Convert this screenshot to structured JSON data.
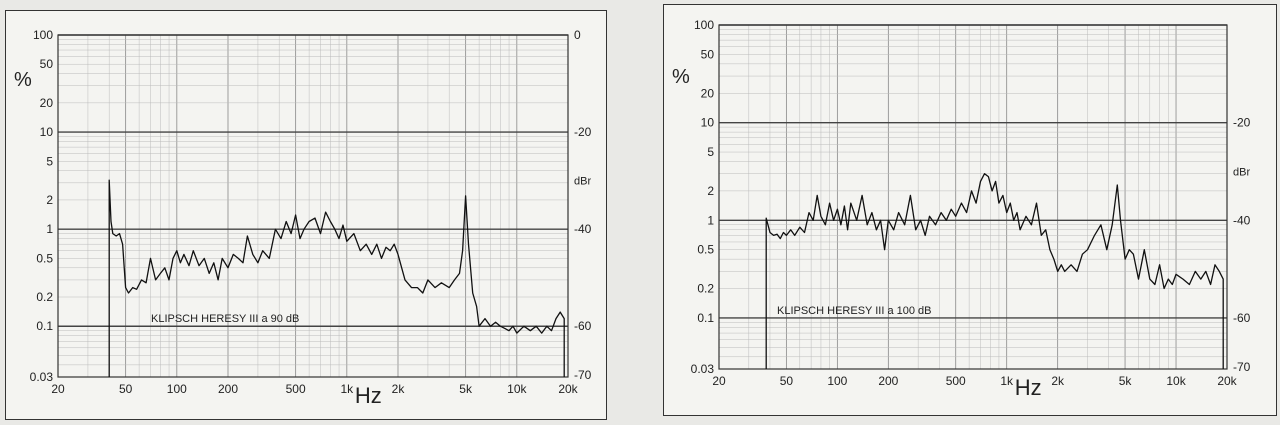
{
  "chart_data": [
    {
      "type": "line",
      "title": "",
      "annotation": "KLIPSCH HERESY III a 90 dB",
      "xlabel": "Hz",
      "ylabel": "%",
      "y2label": "dBr",
      "xscale": "log",
      "yscale": "log",
      "xlim": [
        20,
        20000
      ],
      "ylim": [
        0.03,
        100
      ],
      "y2lim": [
        -70,
        0
      ],
      "x_ticks": [
        {
          "v": 20,
          "label": "20"
        },
        {
          "v": 50,
          "label": "50"
        },
        {
          "v": 100,
          "label": "100"
        },
        {
          "v": 200,
          "label": "200"
        },
        {
          "v": 500,
          "label": "500"
        },
        {
          "v": 1000,
          "label": "1k"
        },
        {
          "v": 2000,
          "label": "2k"
        },
        {
          "v": 5000,
          "label": "5k"
        },
        {
          "v": 10000,
          "label": "10k"
        },
        {
          "v": 20000,
          "label": "20k"
        }
      ],
      "y_ticks": [
        {
          "v": 100,
          "label": "100"
        },
        {
          "v": 50,
          "label": "50"
        },
        {
          "v": 20,
          "label": "20"
        },
        {
          "v": 10,
          "label": "10"
        },
        {
          "v": 5,
          "label": "5"
        },
        {
          "v": 2,
          "label": "2"
        },
        {
          "v": 1,
          "label": "1"
        },
        {
          "v": 0.5,
          "label": "0.5"
        },
        {
          "v": 0.2,
          "label": "0.2"
        },
        {
          "v": 0.1,
          "label": "0.1"
        },
        {
          "v": 0.03,
          "label": "0.03"
        }
      ],
      "y2_ticks": [
        {
          "v": 0,
          "label": "0"
        },
        {
          "v": -20,
          "label": "-20"
        },
        {
          "v": -40,
          "label": "-40"
        },
        {
          "v": -60,
          "label": "-60"
        },
        {
          "v": -70,
          "label": "-70"
        }
      ],
      "series": [
        {
          "x": [
            40,
            40,
            41,
            42,
            44,
            46,
            48,
            50,
            52,
            55,
            58,
            62,
            66,
            70,
            75,
            80,
            85,
            90,
            95,
            100,
            105,
            110,
            118,
            125,
            135,
            145,
            155,
            165,
            175,
            185,
            200,
            215,
            230,
            245,
            260,
            280,
            300,
            320,
            350,
            380,
            410,
            440,
            470,
            500,
            530,
            560,
            600,
            650,
            700,
            750,
            800,
            850,
            900,
            950,
            1000,
            1100,
            1200,
            1300,
            1400,
            1500,
            1600,
            1700,
            1800,
            1900,
            2000,
            2200,
            2400,
            2600,
            2800,
            3000,
            3300,
            3600,
            4000,
            4300,
            4600,
            4800,
            5000,
            5200,
            5500,
            5800,
            6000,
            6500,
            7000,
            7500,
            8000,
            8500,
            9000,
            9500,
            10000,
            11000,
            12000,
            13000,
            14000,
            15000,
            16000,
            17000,
            18000,
            19000,
            19000
          ],
          "y": [
            0.03,
            3.2,
            1.2,
            0.9,
            0.85,
            0.9,
            0.7,
            0.25,
            0.22,
            0.25,
            0.24,
            0.3,
            0.28,
            0.5,
            0.3,
            0.35,
            0.4,
            0.3,
            0.5,
            0.6,
            0.45,
            0.55,
            0.42,
            0.6,
            0.42,
            0.5,
            0.35,
            0.45,
            0.3,
            0.5,
            0.4,
            0.55,
            0.5,
            0.45,
            0.85,
            0.55,
            0.45,
            0.6,
            0.5,
            1.0,
            0.8,
            1.2,
            0.9,
            1.4,
            0.8,
            1.0,
            1.2,
            1.3,
            0.9,
            1.5,
            1.2,
            1.0,
            0.8,
            1.1,
            0.75,
            0.9,
            0.6,
            0.7,
            0.55,
            0.7,
            0.5,
            0.65,
            0.6,
            0.7,
            0.55,
            0.3,
            0.25,
            0.25,
            0.22,
            0.3,
            0.25,
            0.28,
            0.25,
            0.3,
            0.35,
            0.6,
            2.2,
            0.7,
            0.22,
            0.16,
            0.1,
            0.12,
            0.1,
            0.11,
            0.1,
            0.095,
            0.09,
            0.1,
            0.085,
            0.1,
            0.09,
            0.1,
            0.085,
            0.1,
            0.09,
            0.12,
            0.14,
            0.12,
            0.03
          ]
        }
      ]
    },
    {
      "type": "line",
      "title": "",
      "annotation": "KLIPSCH HERESY III a 100 dB",
      "xlabel": "Hz",
      "ylabel": "%",
      "y2label": "dBr",
      "xscale": "log",
      "yscale": "log",
      "xlim": [
        20,
        20000
      ],
      "ylim": [
        0.03,
        100
      ],
      "y2lim": [
        -70,
        0
      ],
      "x_ticks": [
        {
          "v": 20,
          "label": "20"
        },
        {
          "v": 50,
          "label": "50"
        },
        {
          "v": 100,
          "label": "100"
        },
        {
          "v": 200,
          "label": "200"
        },
        {
          "v": 500,
          "label": "500"
        },
        {
          "v": 1000,
          "label": "1k"
        },
        {
          "v": 2000,
          "label": "2k"
        },
        {
          "v": 5000,
          "label": "5k"
        },
        {
          "v": 10000,
          "label": "10k"
        },
        {
          "v": 20000,
          "label": "20k"
        }
      ],
      "y_ticks": [
        {
          "v": 100,
          "label": "100"
        },
        {
          "v": 50,
          "label": "50"
        },
        {
          "v": 20,
          "label": "20"
        },
        {
          "v": 10,
          "label": "10"
        },
        {
          "v": 5,
          "label": "5"
        },
        {
          "v": 2,
          "label": "2"
        },
        {
          "v": 1,
          "label": "1"
        },
        {
          "v": 0.5,
          "label": "0.5"
        },
        {
          "v": 0.2,
          "label": "0.2"
        },
        {
          "v": 0.1,
          "label": "0.1"
        },
        {
          "v": 0.03,
          "label": "0.03"
        }
      ],
      "y2_ticks": [
        {
          "v": -20,
          "label": "-20"
        },
        {
          "v": -40,
          "label": "-40"
        },
        {
          "v": -60,
          "label": "-60"
        },
        {
          "v": -70,
          "label": "-70"
        }
      ],
      "series": [
        {
          "x": [
            38,
            38,
            40,
            42,
            44,
            46,
            48,
            50,
            53,
            56,
            60,
            64,
            68,
            72,
            76,
            80,
            85,
            90,
            95,
            100,
            105,
            110,
            115,
            120,
            130,
            140,
            150,
            160,
            170,
            180,
            190,
            200,
            215,
            230,
            250,
            270,
            290,
            310,
            330,
            350,
            380,
            410,
            440,
            470,
            500,
            540,
            580,
            620,
            660,
            700,
            740,
            780,
            820,
            860,
            900,
            950,
            1000,
            1050,
            1100,
            1150,
            1200,
            1300,
            1400,
            1500,
            1600,
            1700,
            1800,
            1900,
            2000,
            2100,
            2200,
            2400,
            2600,
            2800,
            3000,
            3300,
            3600,
            3900,
            4200,
            4500,
            4700,
            5000,
            5300,
            5600,
            6000,
            6500,
            7000,
            7500,
            8000,
            8500,
            9000,
            9500,
            10000,
            11000,
            12000,
            13000,
            14000,
            15000,
            16000,
            17000,
            18000,
            19000,
            19000
          ],
          "y": [
            0.03,
            1.05,
            0.75,
            0.7,
            0.72,
            0.65,
            0.75,
            0.7,
            0.8,
            0.7,
            0.85,
            0.75,
            1.2,
            1.0,
            1.8,
            1.1,
            0.9,
            1.5,
            1.0,
            1.3,
            0.9,
            1.4,
            0.8,
            1.5,
            1.0,
            1.8,
            0.9,
            1.2,
            0.8,
            1.0,
            0.5,
            1.0,
            0.8,
            1.2,
            0.9,
            1.8,
            0.8,
            1.0,
            0.7,
            1.1,
            0.9,
            1.2,
            1.0,
            1.3,
            1.1,
            1.5,
            1.2,
            2.0,
            1.5,
            2.5,
            3.0,
            2.8,
            2.0,
            2.5,
            1.5,
            1.8,
            1.2,
            1.5,
            1.0,
            1.2,
            0.8,
            1.1,
            0.9,
            1.5,
            0.7,
            0.8,
            0.5,
            0.4,
            0.3,
            0.35,
            0.3,
            0.35,
            0.3,
            0.45,
            0.5,
            0.7,
            0.9,
            0.5,
            0.9,
            2.3,
            1.0,
            0.4,
            0.5,
            0.45,
            0.25,
            0.5,
            0.25,
            0.22,
            0.35,
            0.2,
            0.25,
            0.22,
            0.28,
            0.25,
            0.22,
            0.3,
            0.25,
            0.3,
            0.22,
            0.35,
            0.3,
            0.25,
            0.03
          ]
        }
      ]
    }
  ]
}
